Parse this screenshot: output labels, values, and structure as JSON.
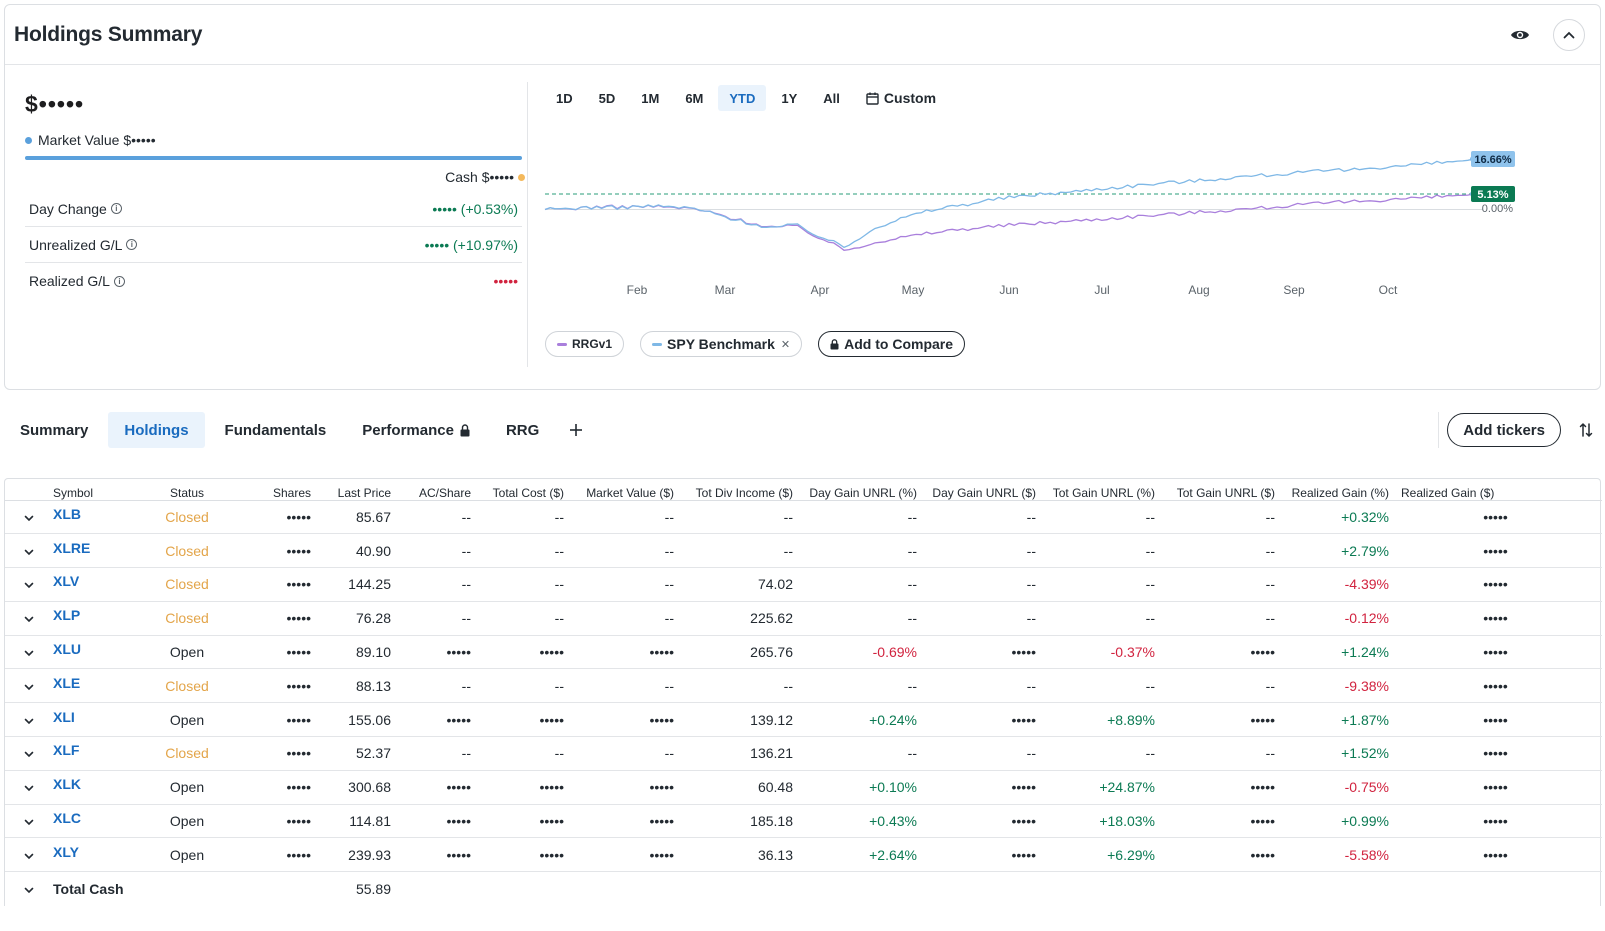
{
  "header": {
    "title": "Holdings Summary",
    "visibility_icon": "eye-icon",
    "collapse_icon": "chevron-up-icon"
  },
  "summary": {
    "total_value": "$•••••",
    "market_value_label": "Market Value $•••••",
    "cash_label": "Cash $•••••",
    "stats": [
      {
        "label": "Day Change",
        "value": "••••• (+0.53%)",
        "tone": "green"
      },
      {
        "label": "Unrealized G/L",
        "value": "••••• (+10.97%)",
        "tone": "green"
      },
      {
        "label": "Realized G/L",
        "value": "•••••",
        "tone": "red"
      }
    ]
  },
  "range_tabs": [
    "1D",
    "5D",
    "1M",
    "6M",
    "YTD",
    "1Y",
    "All",
    "Custom"
  ],
  "active_range": "YTD",
  "legend": {
    "series1": "RRGv1",
    "series2": "SPY Benchmark",
    "compare": "Add to Compare"
  },
  "chart_data": {
    "type": "line",
    "x_labels": [
      "Feb",
      "Mar",
      "Apr",
      "May",
      "Jun",
      "Jul",
      "Aug",
      "Sep",
      "Oct"
    ],
    "reference_label": "0.00%",
    "end_labels": [
      "16.66%",
      "5.13%"
    ],
    "series": [
      {
        "name": "SPY Benchmark",
        "color": "#7fb8e6",
        "final": 16.66,
        "values": [
          0.0,
          0.4,
          0.8,
          0.6,
          1.2,
          0.9,
          0.3,
          -2.0,
          -4.2,
          -6.0,
          -5.0,
          -9.0,
          -12.5,
          -6.5,
          -3.5,
          -1.0,
          0.8,
          2.0,
          3.5,
          4.4,
          5.3,
          5.8,
          6.8,
          7.5,
          8.3,
          9.0,
          9.5,
          10.3,
          11.0,
          11.5,
          12.1,
          12.7,
          13.0,
          13.8,
          14.3,
          15.0,
          15.6,
          16.66
        ]
      },
      {
        "name": "RRGv1",
        "color": "#a97fdc",
        "final": 5.13,
        "values": [
          0.0,
          0.3,
          0.9,
          0.8,
          1.1,
          0.7,
          0.2,
          -1.8,
          -4.0,
          -5.8,
          -5.5,
          -9.5,
          -13.5,
          -11.0,
          -9.5,
          -8.2,
          -7.0,
          -6.2,
          -5.5,
          -4.8,
          -4.3,
          -3.8,
          -3.2,
          -2.6,
          -2.0,
          -1.5,
          -0.9,
          -0.3,
          0.2,
          0.8,
          1.5,
          2.0,
          2.6,
          3.0,
          3.5,
          3.9,
          4.4,
          5.13
        ]
      }
    ]
  },
  "tabs": [
    "Summary",
    "Holdings",
    "Fundamentals",
    "Performance",
    "RRG"
  ],
  "active_tab": "Holdings",
  "add_tickers_label": "Add tickers",
  "table": {
    "columns": [
      "Symbol",
      "Status",
      "Shares",
      "Last Price",
      "AC/Share",
      "Total Cost ($)",
      "Market Value ($)",
      "Tot Div Income ($)",
      "Day Gain UNRL (%)",
      "Day Gain UNRL ($)",
      "Tot Gain UNRL (%)",
      "Tot Gain UNRL ($)",
      "Realized Gain (%)",
      "Realized Gain ($)"
    ],
    "rows": [
      {
        "symbol": "XLB",
        "status": "Closed",
        "shares": "•••••",
        "last": "85.67",
        "ac": "--",
        "cost": "--",
        "mv": "--",
        "div": "--",
        "dgp": "--",
        "dgd": "--",
        "tgp": "--",
        "tgd": "--",
        "rgp": "+0.32%",
        "rgd": "•••••"
      },
      {
        "symbol": "XLRE",
        "status": "Closed",
        "shares": "•••••",
        "last": "40.90",
        "ac": "--",
        "cost": "--",
        "mv": "--",
        "div": "--",
        "dgp": "--",
        "dgd": "--",
        "tgp": "--",
        "tgd": "--",
        "rgp": "+2.79%",
        "rgd": "•••••"
      },
      {
        "symbol": "XLV",
        "status": "Closed",
        "shares": "•••••",
        "last": "144.25",
        "ac": "--",
        "cost": "--",
        "mv": "--",
        "div": "74.02",
        "dgp": "--",
        "dgd": "--",
        "tgp": "--",
        "tgd": "--",
        "rgp": "-4.39%",
        "rgd": "•••••"
      },
      {
        "symbol": "XLP",
        "status": "Closed",
        "shares": "•••••",
        "last": "76.28",
        "ac": "--",
        "cost": "--",
        "mv": "--",
        "div": "225.62",
        "dgp": "--",
        "dgd": "--",
        "tgp": "--",
        "tgd": "--",
        "rgp": "-0.12%",
        "rgd": "•••••"
      },
      {
        "symbol": "XLU",
        "status": "Open",
        "shares": "•••••",
        "last": "89.10",
        "ac": "•••••",
        "cost": "•••••",
        "mv": "•••••",
        "div": "265.76",
        "dgp": "-0.69%",
        "dgd": "•••••",
        "tgp": "-0.37%",
        "tgd": "•••••",
        "rgp": "+1.24%",
        "rgd": "•••••"
      },
      {
        "symbol": "XLE",
        "status": "Closed",
        "shares": "•••••",
        "last": "88.13",
        "ac": "--",
        "cost": "--",
        "mv": "--",
        "div": "--",
        "dgp": "--",
        "dgd": "--",
        "tgp": "--",
        "tgd": "--",
        "rgp": "-9.38%",
        "rgd": "•••••"
      },
      {
        "symbol": "XLI",
        "status": "Open",
        "shares": "•••••",
        "last": "155.06",
        "ac": "•••••",
        "cost": "•••••",
        "mv": "•••••",
        "div": "139.12",
        "dgp": "+0.24%",
        "dgd": "•••••",
        "tgp": "+8.89%",
        "tgd": "•••••",
        "rgp": "+1.87%",
        "rgd": "•••••"
      },
      {
        "symbol": "XLF",
        "status": "Closed",
        "shares": "•••••",
        "last": "52.37",
        "ac": "--",
        "cost": "--",
        "mv": "--",
        "div": "136.21",
        "dgp": "--",
        "dgd": "--",
        "tgp": "--",
        "tgd": "--",
        "rgp": "+1.52%",
        "rgd": "•••••"
      },
      {
        "symbol": "XLK",
        "status": "Open",
        "shares": "•••••",
        "last": "300.68",
        "ac": "•••••",
        "cost": "•••••",
        "mv": "•••••",
        "div": "60.48",
        "dgp": "+0.10%",
        "dgd": "•••••",
        "tgp": "+24.87%",
        "tgd": "•••••",
        "rgp": "-0.75%",
        "rgd": "•••••"
      },
      {
        "symbol": "XLC",
        "status": "Open",
        "shares": "•••••",
        "last": "114.81",
        "ac": "•••••",
        "cost": "•••••",
        "mv": "•••••",
        "div": "185.18",
        "dgp": "+0.43%",
        "dgd": "•••••",
        "tgp": "+18.03%",
        "tgd": "•••••",
        "rgp": "+0.99%",
        "rgd": "•••••"
      },
      {
        "symbol": "XLY",
        "status": "Open",
        "shares": "•••••",
        "last": "239.93",
        "ac": "•••••",
        "cost": "•••••",
        "mv": "•••••",
        "div": "36.13",
        "dgp": "+2.64%",
        "dgd": "•••••",
        "tgp": "+6.29%",
        "tgd": "•••••",
        "rgp": "-5.58%",
        "rgd": "•••••"
      }
    ],
    "total_cash_label": "Total Cash",
    "total_cash_value": "55.89"
  },
  "colors": {
    "accent": "#1a6bbf",
    "gain": "#0b7a53",
    "loss": "#d1233f",
    "closed_status": "#e3a54a",
    "benchmark_line": "#7fb8e6",
    "portfolio_line": "#a97fdc",
    "portfolio_end_badge": "#0b7a53"
  }
}
